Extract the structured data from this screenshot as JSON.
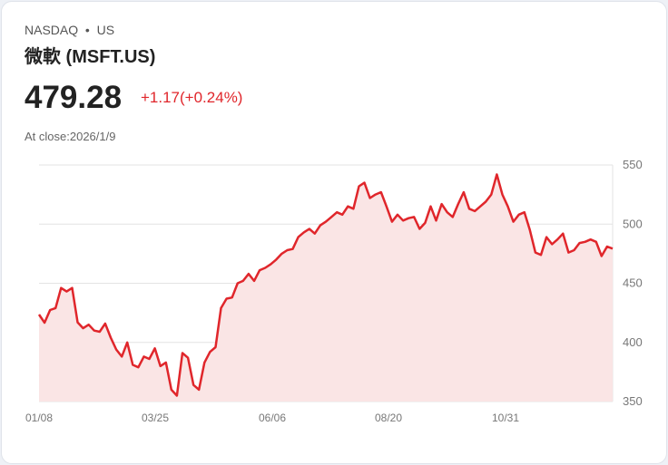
{
  "header": {
    "exchange": "NASDAQ",
    "dot": "•",
    "region": "US",
    "name": "微軟 (MSFT.US)",
    "price": "479.28",
    "change": "+1.17(+0.24%)",
    "close_label": "At close:2026/1/9"
  },
  "colors": {
    "line": "#e0262b",
    "fill": "#fae5e5"
  },
  "chart_data": {
    "type": "area",
    "title": "",
    "xlabel": "",
    "ylabel": "",
    "ylim": [
      350,
      550
    ],
    "yticks": [
      "550",
      "500",
      "450",
      "400",
      "350"
    ],
    "xticks": [
      "01/08",
      "03/25",
      "06/06",
      "08/20",
      "10/31"
    ],
    "values": [
      423.6,
      416.7,
      427.4,
      429,
      446,
      443,
      446,
      417,
      412,
      415,
      410,
      409,
      416,
      404,
      394,
      388,
      400,
      381,
      379,
      388,
      386,
      395,
      380,
      383,
      360,
      355,
      391,
      387,
      364,
      360,
      383,
      392,
      396,
      429,
      437,
      438,
      450,
      452,
      458,
      452,
      461,
      463,
      466,
      470,
      475,
      478,
      479,
      489,
      493,
      496,
      492,
      499,
      502,
      506,
      510,
      508,
      515,
      513,
      532,
      535,
      522,
      525,
      527,
      515,
      502,
      508,
      503,
      505,
      506,
      496,
      501,
      515,
      503,
      517,
      510,
      506,
      517,
      527,
      513,
      511,
      515,
      519,
      525,
      542,
      525,
      515,
      502,
      508,
      510,
      495,
      476,
      474,
      489,
      483,
      487,
      492,
      476,
      478,
      484,
      485,
      487,
      485,
      473,
      481,
      479.28
    ],
    "grid": true
  }
}
